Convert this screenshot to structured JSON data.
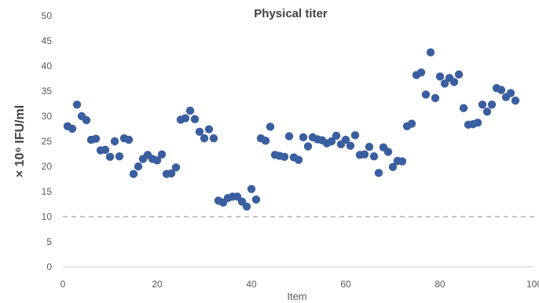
{
  "chart_data": {
    "type": "scatter",
    "title": "Physical titer",
    "xlabel": "Item",
    "ylabel": "× 10⁶ IFU/ml",
    "xlim": [
      0,
      100
    ],
    "ylim": [
      0,
      50
    ],
    "x_ticks": [
      0,
      20,
      40,
      60,
      80,
      100
    ],
    "y_ticks": [
      0,
      5,
      10,
      15,
      20,
      25,
      30,
      35,
      40,
      45,
      50
    ],
    "grid": false,
    "legend": "none",
    "marker_color": "#3a5fa0",
    "reference_line": {
      "y": 10,
      "style": "dashed",
      "color": "#b0b0b0"
    },
    "points": [
      [
        1,
        28
      ],
      [
        2,
        27.5
      ],
      [
        3,
        32.3
      ],
      [
        4,
        30
      ],
      [
        5,
        29.2
      ],
      [
        6,
        25.3
      ],
      [
        7,
        25.5
      ],
      [
        8,
        23.2
      ],
      [
        9,
        23.3
      ],
      [
        10,
        21.9
      ],
      [
        11,
        25
      ],
      [
        12,
        22
      ],
      [
        13,
        25.6
      ],
      [
        14,
        25.3
      ],
      [
        15,
        18.5
      ],
      [
        16,
        20
      ],
      [
        17,
        21.5
      ],
      [
        18,
        22.3
      ],
      [
        19,
        21.5
      ],
      [
        20,
        21.2
      ],
      [
        21,
        22.4
      ],
      [
        22,
        18.5
      ],
      [
        23,
        18.6
      ],
      [
        24,
        19.8
      ],
      [
        25,
        29.3
      ],
      [
        26,
        29.6
      ],
      [
        27,
        31.1
      ],
      [
        28,
        29.4
      ],
      [
        29,
        26.9
      ],
      [
        30,
        25.6
      ],
      [
        31,
        27.4
      ],
      [
        32,
        25.6
      ],
      [
        33,
        13.2
      ],
      [
        34,
        12.8
      ],
      [
        35,
        13.7
      ],
      [
        36,
        14
      ],
      [
        37,
        14
      ],
      [
        38,
        13
      ],
      [
        39,
        12
      ],
      [
        40,
        15.5
      ],
      [
        41,
        13.4
      ],
      [
        42,
        25.6
      ],
      [
        43,
        25.1
      ],
      [
        44,
        27.9
      ],
      [
        45,
        22.3
      ],
      [
        46,
        22.1
      ],
      [
        47,
        21.9
      ],
      [
        48,
        26
      ],
      [
        49,
        21.8
      ],
      [
        50,
        21.3
      ],
      [
        51,
        25.8
      ],
      [
        52,
        24
      ],
      [
        53,
        25.8
      ],
      [
        54,
        25.4
      ],
      [
        55,
        25.2
      ],
      [
        56,
        24.6
      ],
      [
        57,
        25
      ],
      [
        58,
        26.1
      ],
      [
        59,
        24.4
      ],
      [
        60,
        25.3
      ],
      [
        61,
        24.1
      ],
      [
        62,
        26.2
      ],
      [
        63,
        22.3
      ],
      [
        64,
        22.4
      ],
      [
        65,
        23.9
      ],
      [
        66,
        22
      ],
      [
        67,
        18.7
      ],
      [
        68,
        23.8
      ],
      [
        69,
        22.9
      ],
      [
        70,
        19.9
      ],
      [
        71,
        21.1
      ],
      [
        72,
        21
      ],
      [
        73,
        28
      ],
      [
        74,
        28.5
      ],
      [
        75,
        38.2
      ],
      [
        76,
        38.7
      ],
      [
        77,
        34.3
      ],
      [
        78,
        42.7
      ],
      [
        79,
        33.6
      ],
      [
        80,
        37.9
      ],
      [
        81,
        36.5
      ],
      [
        82,
        37.6
      ],
      [
        83,
        36.8
      ],
      [
        84,
        38.3
      ],
      [
        85,
        31.6
      ],
      [
        86,
        28.3
      ],
      [
        87,
        28.4
      ],
      [
        88,
        28.7
      ],
      [
        89,
        32.3
      ],
      [
        90,
        30.9
      ],
      [
        91,
        32.3
      ],
      [
        92,
        35.6
      ],
      [
        93,
        35.2
      ],
      [
        94,
        33.8
      ],
      [
        95,
        34.6
      ],
      [
        96,
        33.1
      ]
    ]
  }
}
